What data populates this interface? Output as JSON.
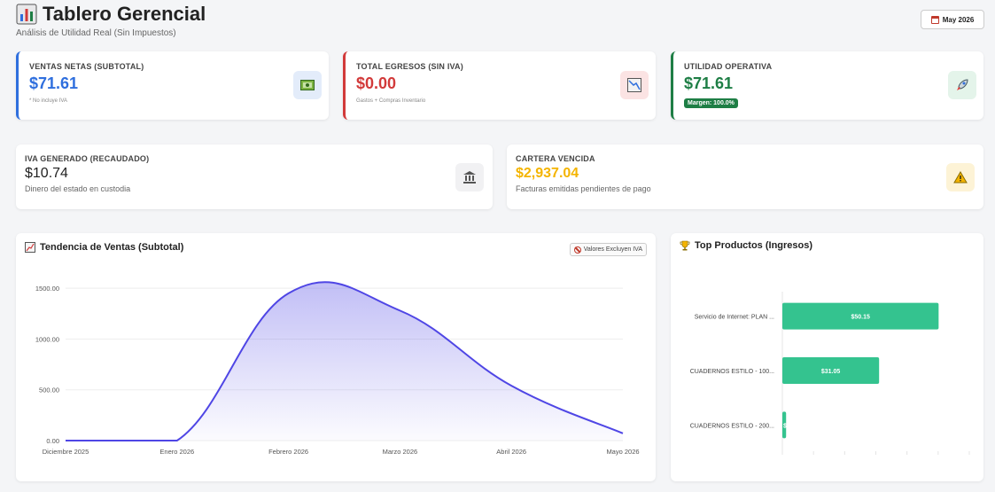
{
  "header": {
    "title": "Tablero Gerencial",
    "subtitle": "Análisis de Utilidad Real (Sin Impuestos)",
    "period_button": "May 2026",
    "icons": {
      "title": "bar-chart-icon",
      "period": "calendar-icon"
    }
  },
  "kpis": {
    "sales": {
      "label": "VENTAS NETAS (SUBTOTAL)",
      "value": "$71.61",
      "note": "* No incluye IVA",
      "icon": "money-icon",
      "color": "#2f6fde"
    },
    "expenses": {
      "label": "TOTAL EGRESOS (SIN IVA)",
      "value": "$0.00",
      "note": "Gastos + Compras Inventario",
      "icon": "trend-down-icon",
      "color": "#d23a3a"
    },
    "profit": {
      "label": "UTILIDAD OPERATIVA",
      "value": "$71.61",
      "badge": "Margen: 100.0%",
      "icon": "rocket-icon",
      "color": "#1e7e45"
    },
    "iva": {
      "label": "IVA GENERADO (RECAUDADO)",
      "value": "$10.74",
      "note": "Dinero del estado en custodia",
      "icon": "bank-icon"
    },
    "receivables": {
      "label": "CARTERA VENCIDA",
      "value": "$2,937.04",
      "note": "Facturas emitidas pendientes de pago",
      "icon": "warning-icon",
      "color": "#f4b400"
    }
  },
  "sales_panel": {
    "title": "Tendencia de Ventas (Subtotal)",
    "badge": "Valores Excluyen IVA",
    "icon": "trend-up-icon"
  },
  "products_panel": {
    "title": "Top Productos (Ingresos)",
    "icon": "trophy-icon"
  },
  "chart_data": [
    {
      "type": "area",
      "categories": [
        "Diciembre 2025",
        "Enero 2026",
        "Febrero 2026",
        "Marzo 2026",
        "Abril 2026",
        "Mayo 2026"
      ],
      "values": [
        0,
        0,
        1450,
        1280,
        540,
        71.61
      ],
      "yticks": [
        "0.00",
        "500.00",
        "1000.00",
        "1500.00"
      ],
      "ylim": [
        0,
        1650
      ],
      "color": "#4f46e5"
    },
    {
      "type": "bar",
      "orientation": "horizontal",
      "categories": [
        "Servicio de Internet: PLAN ...",
        "CUADERNOS ESTILO - 100...",
        "CUADERNOS ESTILO - 200..."
      ],
      "values": [
        50.15,
        31.05,
        1.2
      ],
      "labels": [
        "$50.15",
        "$31.05",
        "$"
      ],
      "xlim": [
        0,
        60
      ],
      "color": "#34c38f"
    }
  ]
}
